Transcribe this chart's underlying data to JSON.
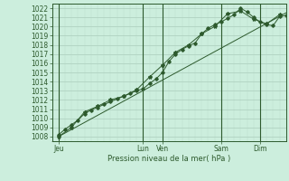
{
  "title": "",
  "xlabel": "Pression niveau de la mer( hPa )",
  "bg_color": "#cceedd",
  "grid_major_color": "#aaccbb",
  "grid_minor_color": "#bbddcc",
  "line_color": "#2d5a2d",
  "ylim": [
    1007.5,
    1022.5
  ],
  "xlim": [
    0,
    108
  ],
  "yticks": [
    1008,
    1009,
    1010,
    1011,
    1012,
    1013,
    1014,
    1015,
    1016,
    1017,
    1018,
    1019,
    1020,
    1021,
    1022
  ],
  "xtick_pos": [
    3,
    42,
    51,
    78,
    96
  ],
  "xtick_labels": [
    "Jeu",
    "Lun",
    "Ven",
    "Sam",
    "Dim"
  ],
  "vline_pos": [
    3,
    42,
    51,
    78,
    96
  ],
  "series1_x": [
    3,
    6,
    9,
    12,
    15,
    18,
    21,
    24,
    27,
    30,
    33,
    36,
    39,
    42,
    45,
    48,
    51,
    54,
    57,
    60,
    63,
    66,
    69,
    72,
    75,
    78,
    81,
    84,
    87,
    90,
    93,
    96,
    99,
    102,
    105,
    108
  ],
  "series1_y": [
    1008.2,
    1008.8,
    1009.3,
    1009.8,
    1010.5,
    1010.9,
    1011.2,
    1011.5,
    1011.8,
    1012.1,
    1012.4,
    1012.7,
    1013.0,
    1013.2,
    1013.8,
    1014.3,
    1015.0,
    1016.2,
    1017.0,
    1017.5,
    1017.9,
    1018.2,
    1019.2,
    1019.8,
    1020.2,
    1020.5,
    1020.9,
    1021.3,
    1022.0,
    1021.6,
    1021.0,
    1020.5,
    1020.2,
    1020.1,
    1021.1,
    1021.2
  ],
  "series2_x": [
    3,
    9,
    15,
    21,
    27,
    33,
    39,
    45,
    51,
    57,
    63,
    69,
    75,
    81,
    87,
    93,
    99,
    105
  ],
  "series2_y": [
    1008.0,
    1009.0,
    1010.7,
    1011.3,
    1012.0,
    1012.4,
    1013.1,
    1014.5,
    1015.8,
    1017.2,
    1018.0,
    1019.2,
    1020.0,
    1021.4,
    1021.7,
    1020.8,
    1020.3,
    1021.3
  ],
  "trend_x": [
    3,
    108
  ],
  "trend_y": [
    1008.0,
    1021.5
  ]
}
